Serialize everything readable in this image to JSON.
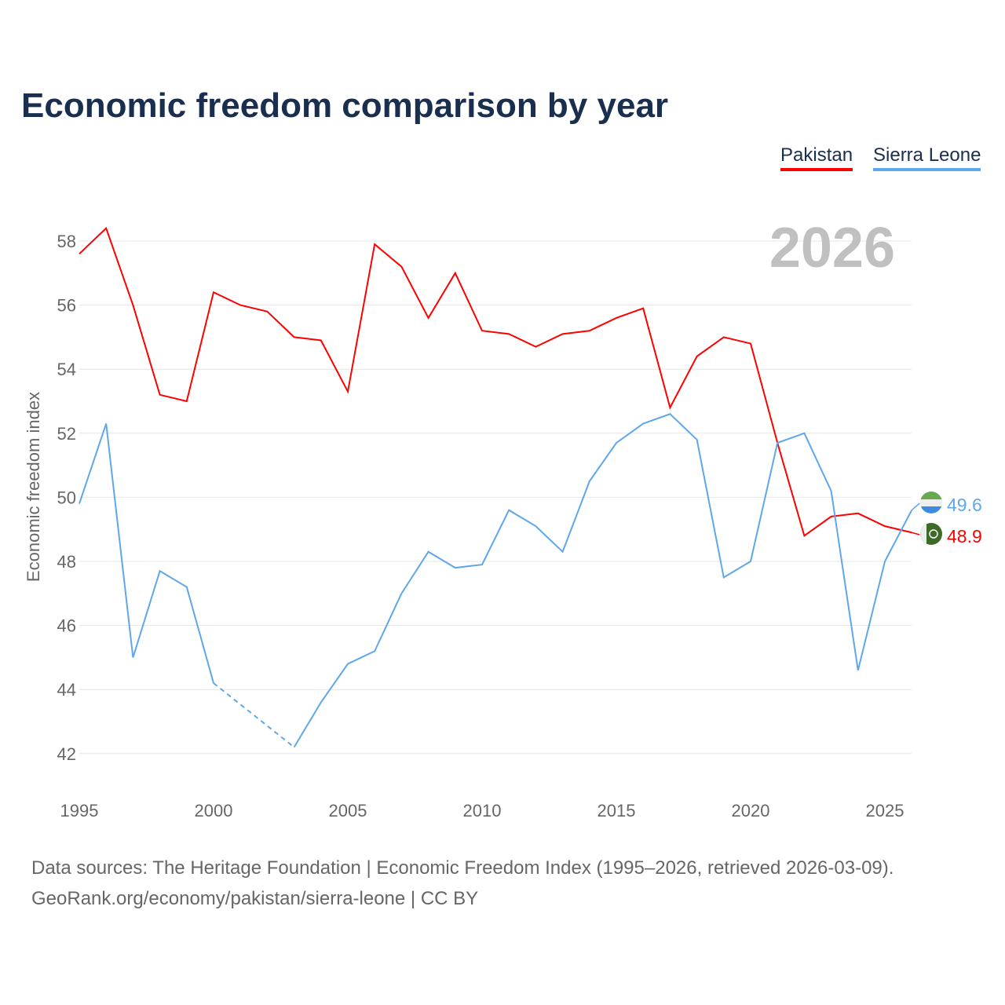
{
  "chart_data": {
    "type": "line",
    "title": "Economic freedom comparison by year",
    "ylabel": "Economic freedom index",
    "xlabel": "",
    "ylim": [
      41,
      59
    ],
    "xlim": [
      1995,
      2026
    ],
    "yticks": [
      42,
      44,
      46,
      48,
      50,
      52,
      54,
      56,
      58
    ],
    "xticks": [
      1995,
      2000,
      2005,
      2010,
      2015,
      2020,
      2025
    ],
    "grid": true,
    "legend_position": "top-right",
    "watermark_year": "2026",
    "x": [
      1995,
      1996,
      1997,
      1998,
      1999,
      2000,
      2001,
      2002,
      2003,
      2004,
      2005,
      2006,
      2007,
      2008,
      2009,
      2010,
      2011,
      2012,
      2013,
      2014,
      2015,
      2016,
      2017,
      2018,
      2019,
      2020,
      2021,
      2022,
      2023,
      2024,
      2025,
      2026
    ],
    "series": [
      {
        "name": "Pakistan",
        "color": "#ff0000",
        "end_label": "48.9",
        "values": [
          57.6,
          58.4,
          56.0,
          53.2,
          53.0,
          56.4,
          56.0,
          55.8,
          55.0,
          54.9,
          53.3,
          57.9,
          57.2,
          55.6,
          57.0,
          55.2,
          55.1,
          54.7,
          55.1,
          55.2,
          55.6,
          55.9,
          52.8,
          54.4,
          55.0,
          54.8,
          51.7,
          48.8,
          49.4,
          49.5,
          49.1,
          48.9
        ]
      },
      {
        "name": "Sierra Leone",
        "color": "#5ea7ea",
        "end_label": "49.6",
        "values": [
          49.8,
          52.3,
          45.0,
          47.7,
          47.2,
          44.2,
          null,
          null,
          42.2,
          43.6,
          44.8,
          45.2,
          47.0,
          48.3,
          47.8,
          47.9,
          49.6,
          49.1,
          48.3,
          50.5,
          51.7,
          52.3,
          52.6,
          51.8,
          47.5,
          48.0,
          51.7,
          52.0,
          50.2,
          44.6,
          48.0,
          49.6
        ]
      }
    ]
  },
  "source": {
    "line1": "Data sources: The Heritage Foundation | Economic Freedom Index (1995–2026, retrieved 2026-03-09).",
    "line2": "GeoRank.org/economy/pakistan/sierra-leone | CC BY"
  }
}
